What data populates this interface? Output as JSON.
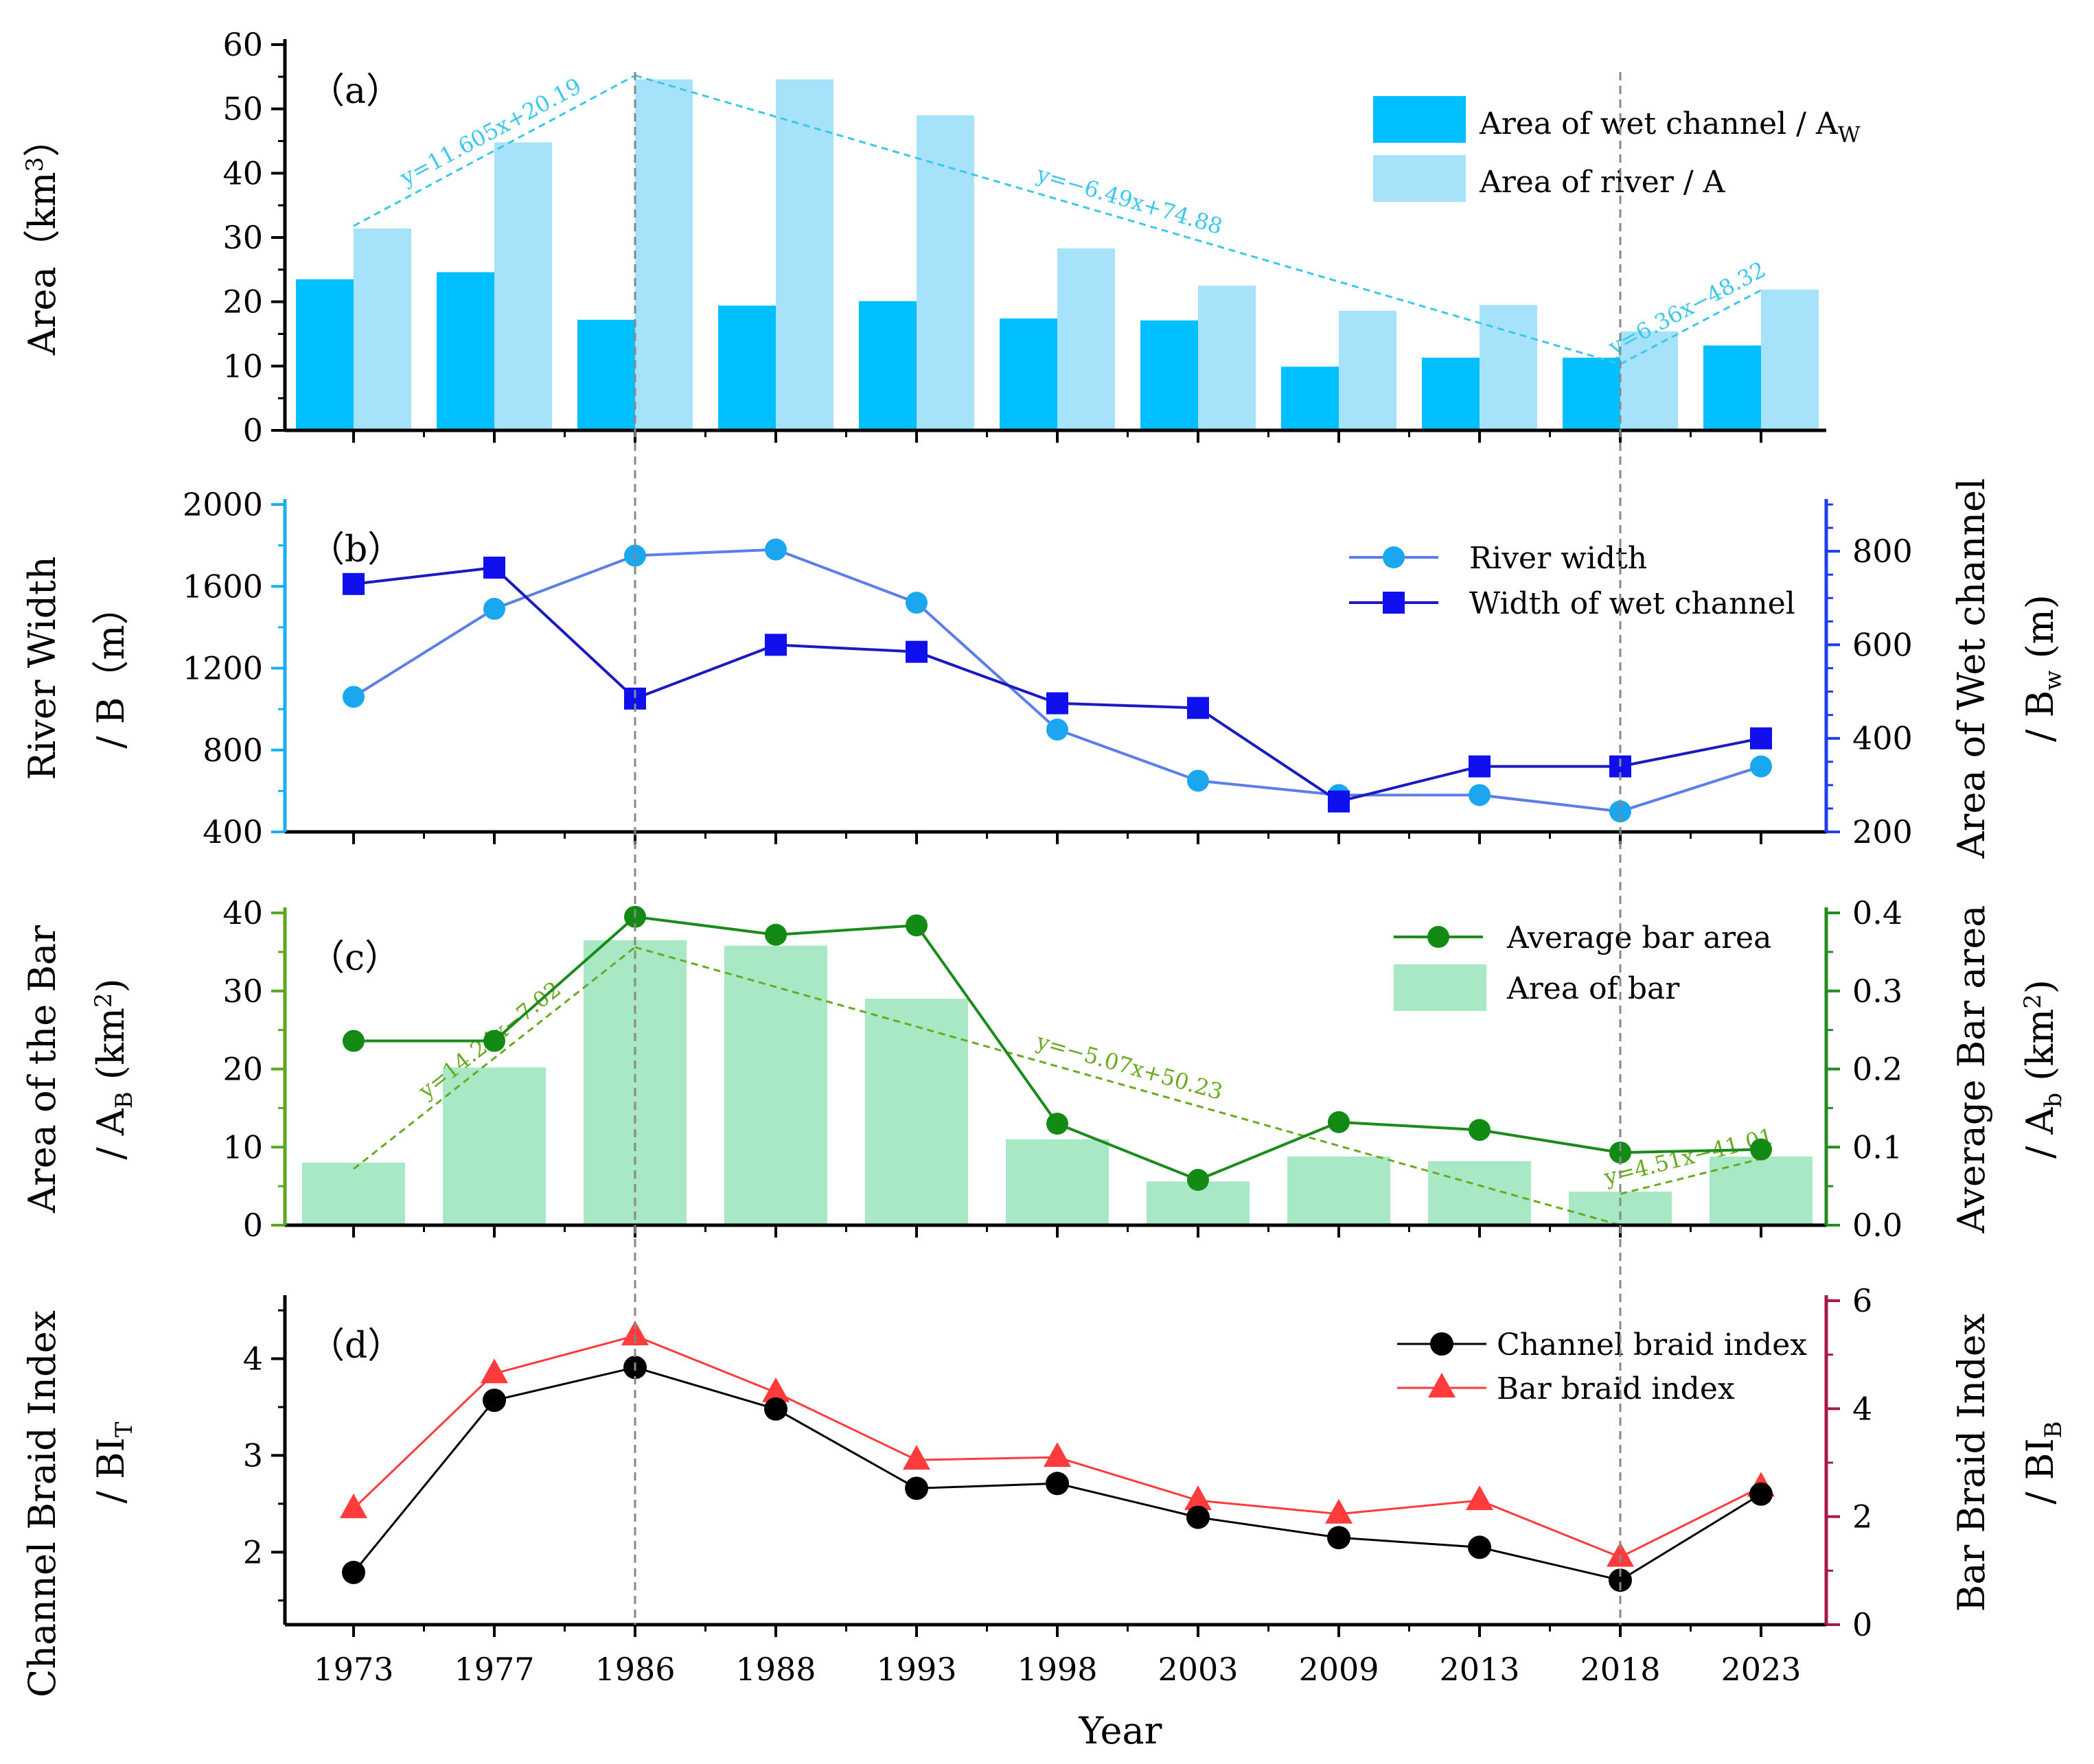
{
  "colors": {
    "wet_channel_bar": "#00bfff",
    "river_area_bar": "#a6e3fb",
    "trend_a": "#3cc8ee",
    "axis_b_left": "#1ab0ef",
    "axis_b_right": "#1f3ee8",
    "river_width_line": "#5b7ee8",
    "river_width_marker": "#1aa7f0",
    "wet_width_line": "#1a1ac0",
    "wet_width_marker": "#1010ee",
    "axis_c_left": "#5aa81e",
    "axis_c_right": "#228b22",
    "bar_area": "#a8e8c4",
    "avg_bar_line": "#1a8a1a",
    "avg_bar_marker": "#138a13",
    "trend_c": "#6aaa22",
    "axis_d_right": "#a6184e",
    "channel_braid": "#000000",
    "bar_braid": "#ff3b3b",
    "vline": "#888888"
  },
  "chart_data": [
    {
      "id": "a",
      "type": "bar",
      "panel_label": "（a）",
      "categories": [
        "1973",
        "1977",
        "1986",
        "1988",
        "1993",
        "1998",
        "2003",
        "2009",
        "2013",
        "2018",
        "2023"
      ],
      "ylabel_text": "Area（km",
      "ylabel_sup": "3",
      "ylabel_end": "）",
      "ylim": [
        0,
        60
      ],
      "yticks": [
        "0",
        "10",
        "20",
        "30",
        "40",
        "50",
        "60"
      ],
      "series": [
        {
          "name": "Area of wet channel / A",
          "name_sub": "W",
          "values": [
            23.5,
            24.6,
            17.2,
            19.4,
            20.1,
            17.4,
            17.1,
            9.9,
            11.3,
            11.3,
            13.2
          ]
        },
        {
          "name": "Area of river / A",
          "name_sub": "",
          "values": [
            31.4,
            44.8,
            54.6,
            54.6,
            49.0,
            28.3,
            22.5,
            18.6,
            19.5,
            15.4,
            21.9
          ]
        }
      ],
      "trendlines": [
        {
          "label": "y=11.605x+20.19",
          "from": [
            0,
            31.8
          ],
          "to": [
            2,
            55.2
          ]
        },
        {
          "label": "y=−6.49x+74.88",
          "from": [
            2,
            55.2
          ],
          "to": [
            9,
            10.3
          ]
        },
        {
          "label": "y=6.36x−48.32",
          "from": [
            9,
            10.3
          ],
          "to": [
            10,
            21.8
          ]
        }
      ],
      "legend_position": "top-right"
    },
    {
      "id": "b",
      "type": "line",
      "panel_label": "（b）",
      "categories": [
        "1973",
        "1977",
        "1986",
        "1988",
        "1993",
        "1998",
        "2003",
        "2009",
        "2013",
        "2018",
        "2023"
      ],
      "ylabel_left_1": "River Width",
      "ylabel_left_2": "/ B（m）",
      "ylabel_right_1": "Area of Wet channel",
      "ylabel_right_2": "/ B",
      "ylabel_right_sub": "w",
      "ylabel_right_end": " (m)",
      "ylim_left": [
        400,
        2000
      ],
      "yticks_left": [
        "400",
        "800",
        "1200",
        "1600",
        "2000"
      ],
      "ylim_right": [
        200,
        900
      ],
      "yticks_right": [
        "200",
        "400",
        "600",
        "800"
      ],
      "series": [
        {
          "name": "River width",
          "axis": "left",
          "values": [
            1060,
            1490,
            1750,
            1780,
            1520,
            900,
            650,
            580,
            580,
            500,
            720
          ]
        },
        {
          "name": "Width of wet channel",
          "axis": "right",
          "values": [
            730,
            765,
            485,
            600,
            585,
            475,
            465,
            265,
            340,
            340,
            400
          ]
        }
      ],
      "legend_position": "top-right"
    },
    {
      "id": "c",
      "type": "bar",
      "panel_label": "（c）",
      "categories": [
        "1973",
        "1977",
        "1986",
        "1988",
        "1993",
        "1998",
        "2003",
        "2009",
        "2013",
        "2018",
        "2023"
      ],
      "ylabel_left_1": "Area of the Bar",
      "ylabel_left_2": "/ A",
      "ylabel_left_sub": "B",
      "ylabel_left_end": " (km",
      "ylabel_left_sup": "2",
      "ylabel_left_close": ")",
      "ylabel_right_1": "Average Bar area",
      "ylabel_right_2": "/ A",
      "ylabel_right_sub": "b",
      "ylabel_right_end": " (km",
      "ylabel_right_sup": "2",
      "ylabel_right_close": ")",
      "ylim_left": [
        0,
        40
      ],
      "yticks_left": [
        "0",
        "10",
        "20",
        "30",
        "40"
      ],
      "ylim_right": [
        0,
        0.4
      ],
      "yticks_right": [
        "0.0",
        "0.1",
        "0.2",
        "0.3",
        "0.4"
      ],
      "series": [
        {
          "name": "Area of bar",
          "axis": "left",
          "values": [
            8.0,
            20.2,
            36.5,
            35.8,
            29.0,
            11.0,
            5.6,
            8.8,
            8.2,
            4.3,
            8.8
          ]
        },
        {
          "name": "Average bar area",
          "axis": "right",
          "values": [
            0.236,
            0.236,
            0.395,
            0.372,
            0.384,
            0.13,
            0.058,
            0.132,
            0.122,
            0.093,
            0.097
          ]
        }
      ],
      "trendlines": [
        {
          "label": "y=14.24x−7.02",
          "from": [
            0,
            7.2
          ],
          "to": [
            2,
            35.6
          ]
        },
        {
          "label": "y=−5.07x+50.23",
          "from": [
            2,
            35.6
          ],
          "to": [
            9,
            0
          ]
        },
        {
          "label": "y=4.51x−41.01",
          "from": [
            9,
            4.0
          ],
          "to": [
            10,
            8.5
          ]
        }
      ],
      "legend_position": "top-right"
    },
    {
      "id": "d",
      "type": "line",
      "panel_label": "（d）",
      "categories": [
        "1973",
        "1977",
        "1986",
        "1988",
        "1993",
        "1998",
        "2003",
        "2009",
        "2013",
        "2018",
        "2023"
      ],
      "xlabel": "Year",
      "ylabel_left_1": "Channel Braid Index",
      "ylabel_left_2": "/ BI",
      "ylabel_left_sub": "T",
      "ylabel_right_1": "Bar Braid Index",
      "ylabel_right_2": "/ BI",
      "ylabel_right_sub": "B",
      "ylim_left": [
        1.25,
        4.6
      ],
      "yticks_left": [
        "2",
        "3",
        "4"
      ],
      "ylim_right": [
        0,
        6
      ],
      "yticks_right": [
        "0",
        "2",
        "4",
        "6"
      ],
      "series": [
        {
          "name": "Channel braid index",
          "axis": "left",
          "values": [
            1.79,
            3.57,
            3.91,
            3.48,
            2.66,
            2.71,
            2.36,
            2.15,
            2.05,
            1.71,
            2.6
          ]
        },
        {
          "name": "Bar braid index",
          "axis": "right",
          "values": [
            2.15,
            4.65,
            5.35,
            4.3,
            3.05,
            3.1,
            2.3,
            2.05,
            2.3,
            1.25,
            2.55
          ]
        }
      ],
      "legend_position": "top-right"
    }
  ],
  "reference_lines_at": [
    "1986",
    "2018"
  ]
}
